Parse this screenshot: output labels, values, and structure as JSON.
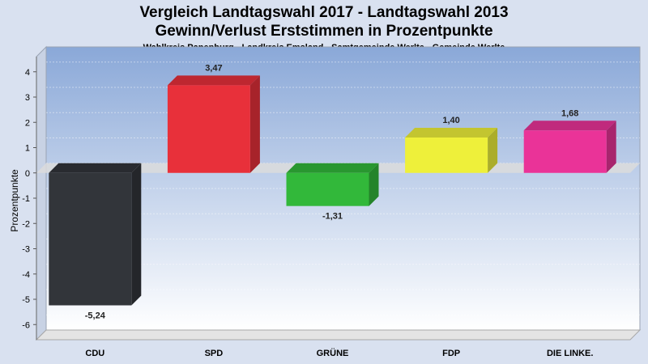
{
  "chart_data": {
    "type": "bar",
    "title": "Vergleich Landtagswahl 2017 - Landtagswahl 2013",
    "title2": "Gewinn/Verlust Erststimmen in Prozentpunkte",
    "subtitle": "Wahlkreis Papenburg - Landkreis Emsland - Samtgemeinde Werlte - Gemeinde Werlte",
    "ylabel": "Prozentpunkte",
    "xlabel": "",
    "ylim": [
      -6.6,
      4.6
    ],
    "yticks": [
      "4",
      "3",
      "2",
      "1",
      "0",
      "-1",
      "-2",
      "-3",
      "-4",
      "-5",
      "-6"
    ],
    "grid": true,
    "categories": [
      "CDU",
      "SPD",
      "GRÜNE",
      "FDP",
      "DIE LINKE."
    ],
    "values": [
      -5.24,
      3.47,
      -1.31,
      1.4,
      1.68
    ],
    "value_labels": [
      "-5,24",
      "3,47",
      "-1,31",
      "1,40",
      "1,68"
    ],
    "colors": [
      "#32353a",
      "#e8303a",
      "#32b83a",
      "#eef03a",
      "#ea3398"
    ]
  }
}
